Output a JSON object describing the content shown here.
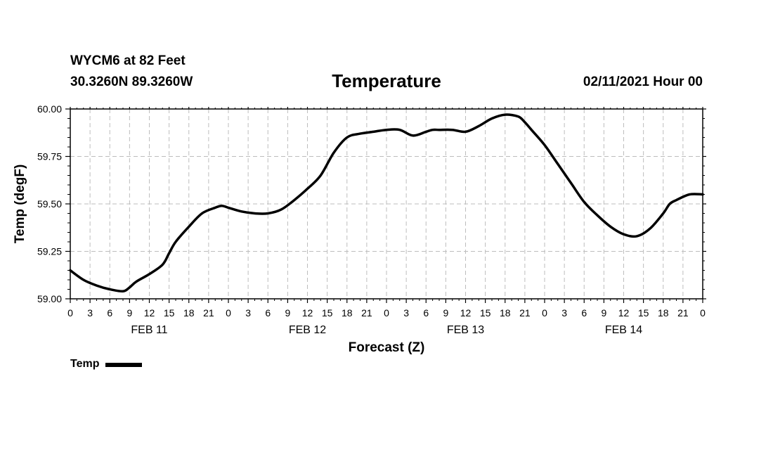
{
  "header": {
    "station": "WYCM6 at 82 Feet",
    "coords": "30.3260N 89.3260W",
    "title": "Temperature",
    "datetime": "02/11/2021 Hour 00"
  },
  "legend": {
    "label": "Temp"
  },
  "chart_data": {
    "type": "line",
    "title": "Temperature",
    "xlabel": "Forecast (Z)",
    "ylabel": "Temp (degF)",
    "x_unit": "forecast hour",
    "xlim": [
      0,
      96
    ],
    "ylim": [
      59.0,
      60.0
    ],
    "yticks": [
      "59.00",
      "59.25",
      "59.50",
      "59.75",
      "60.00"
    ],
    "xtick_labels": [
      "0",
      "3",
      "6",
      "9",
      "12",
      "15",
      "18",
      "21",
      "0",
      "3",
      "6",
      "9",
      "12",
      "15",
      "18",
      "21",
      "0",
      "3",
      "6",
      "9",
      "12",
      "15",
      "18",
      "21",
      "0",
      "3",
      "6",
      "9",
      "12",
      "15",
      "18",
      "21",
      "0"
    ],
    "day_labels": [
      "FEB 11",
      "FEB 12",
      "FEB 13",
      "FEB 14"
    ],
    "grid": true,
    "legend_position": "bottom-left",
    "series": [
      {
        "name": "Temp",
        "color": "#000000",
        "x": [
          0,
          2,
          4,
          6,
          8,
          9,
          10,
          12,
          14,
          15,
          16,
          18,
          20,
          22,
          23,
          24,
          26,
          28,
          30,
          32,
          34,
          36,
          38,
          40,
          42,
          44,
          46,
          48,
          50,
          52,
          54,
          55,
          56,
          58,
          60,
          62,
          64,
          66,
          68,
          69,
          70,
          72,
          74,
          76,
          78,
          80,
          82,
          84,
          86,
          88,
          90,
          91,
          92,
          94,
          96
        ],
        "y": [
          59.15,
          59.1,
          59.07,
          59.05,
          59.04,
          59.06,
          59.09,
          59.13,
          59.18,
          59.24,
          59.3,
          59.38,
          59.45,
          59.48,
          59.49,
          59.48,
          59.46,
          59.45,
          59.45,
          59.47,
          59.52,
          59.58,
          59.65,
          59.77,
          59.85,
          59.87,
          59.88,
          59.89,
          59.89,
          59.86,
          59.88,
          59.89,
          59.89,
          59.89,
          59.88,
          59.91,
          59.95,
          59.97,
          59.96,
          59.93,
          59.89,
          59.81,
          59.71,
          59.61,
          59.51,
          59.44,
          59.38,
          59.34,
          59.33,
          59.37,
          59.45,
          59.5,
          59.52,
          59.55,
          59.55
        ]
      }
    ]
  }
}
